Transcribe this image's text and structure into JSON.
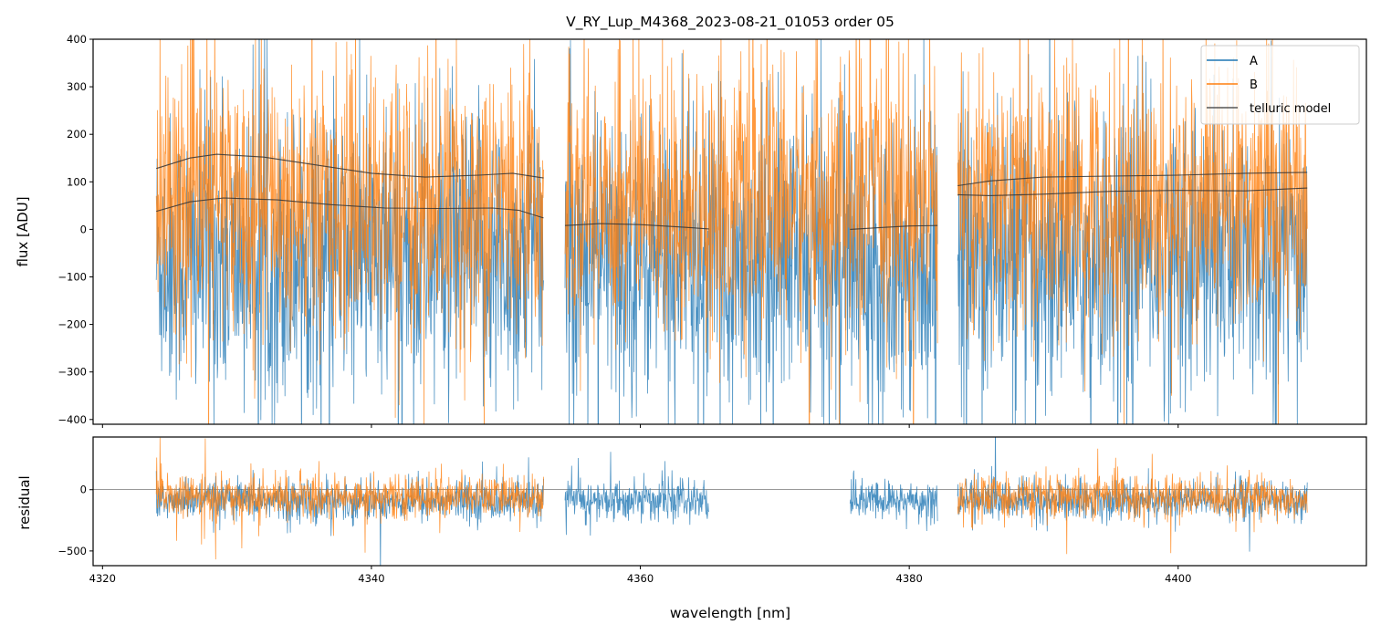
{
  "chart_data": {
    "type": "line",
    "title": "V_RY_Lup_M4368_2023-08-21_01053  order 05",
    "xlabel": "wavelength [nm]",
    "xlim": [
      4319.3,
      4414.0
    ],
    "xticks": [
      4320,
      4340,
      4360,
      4380,
      4400
    ],
    "panels": [
      {
        "name": "flux",
        "ylabel": "flux [ADU]",
        "ylim": [
          -410,
          400
        ],
        "yticks": [
          -400,
          -300,
          -200,
          -100,
          0,
          100,
          200,
          300,
          400
        ],
        "series": [
          {
            "name": "A",
            "color": "#1f77b4",
            "segments": [
              [
                4324.0,
                4352.8
              ],
              [
                4354.4,
                4382.1
              ],
              [
                4383.6,
                4409.6
              ]
            ],
            "approx_mean": -60,
            "approx_std": 150
          },
          {
            "name": "B",
            "color": "#ff7f0e",
            "segments": [
              [
                4324.0,
                4352.8
              ],
              [
                4354.4,
                4382.1
              ],
              [
                4383.6,
                4409.6
              ]
            ],
            "approx_mean": 60,
            "approx_std": 140
          }
        ],
        "telluric_model": {
          "name": "telluric model",
          "color": "#333333",
          "curves": [
            {
              "x": [
                4324.0,
                4326.5,
                4328.5,
                4332,
                4336,
                4340,
                4344,
                4348,
                4350.5,
                4352.8
              ],
              "y": [
                128,
                150,
                158,
                152,
                135,
                118,
                110,
                114,
                118,
                108
              ]
            },
            {
              "x": [
                4324.0,
                4326.5,
                4329,
                4333,
                4337,
                4341,
                4345,
                4349,
                4351,
                4352.8
              ],
              "y": [
                38,
                58,
                66,
                62,
                52,
                45,
                44,
                45,
                40,
                24
              ]
            },
            {
              "x": [
                4354.4,
                4357,
                4360,
                4363,
                4365.1
              ],
              "y": [
                8,
                12,
                10,
                5,
                1
              ]
            },
            {
              "x": [
                4375.6,
                4378,
                4380,
                4382.1
              ],
              "y": [
                0,
                4,
                7,
                8
              ]
            },
            {
              "x": [
                4383.6,
                4386,
                4390,
                4395,
                4400,
                4405,
                4409.6
              ],
              "y": [
                92,
                102,
                110,
                112,
                114,
                118,
                120
              ]
            },
            {
              "x": [
                4383.6,
                4386,
                4390,
                4395,
                4400,
                4405,
                4409.6
              ],
              "y": [
                73,
                71,
                74,
                80,
                82,
                81,
                87
              ]
            }
          ]
        },
        "legend": {
          "placement": "top-right",
          "entries": [
            "A",
            "B",
            "telluric model"
          ]
        }
      },
      {
        "name": "residual",
        "ylabel": "residual",
        "ylim": [
          -620,
          430
        ],
        "yticks": [
          -500,
          0
        ],
        "hline": 0,
        "series": [
          {
            "name": "A",
            "color": "#1f77b4",
            "segments": [
              [
                4324.0,
                4352.8
              ],
              [
                4354.4,
                4365.1
              ],
              [
                4375.6,
                4382.1
              ],
              [
                4383.6,
                4409.6
              ]
            ],
            "approx_mean": -90,
            "approx_std": 80
          },
          {
            "name": "B",
            "color": "#ff7f0e",
            "segments": [
              [
                4324.0,
                4352.8
              ],
              [
                4383.6,
                4409.6
              ]
            ],
            "approx_mean": -60,
            "approx_std": 85
          }
        ]
      }
    ]
  }
}
